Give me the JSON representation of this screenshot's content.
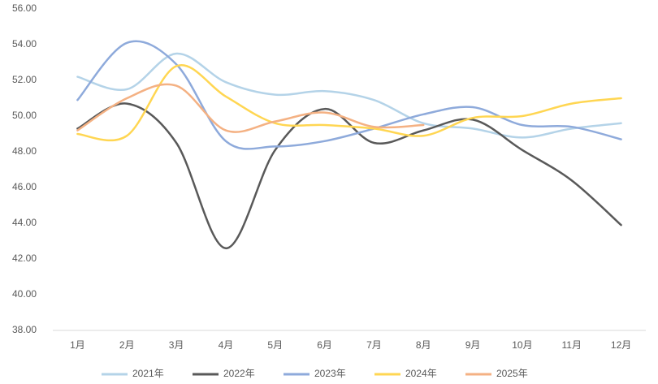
{
  "chart_data": {
    "type": "line",
    "categories": [
      "1月",
      "2月",
      "3月",
      "4月",
      "5月",
      "6月",
      "7月",
      "8月",
      "9月",
      "10月",
      "11月",
      "12月"
    ],
    "ylim": [
      38,
      56
    ],
    "yticks": [
      {
        "value": 38,
        "label": "38.00"
      },
      {
        "value": 40,
        "label": "40.00"
      },
      {
        "value": 42,
        "label": "42.00"
      },
      {
        "value": 44,
        "label": "44.00"
      },
      {
        "value": 46,
        "label": "46.00"
      },
      {
        "value": 48,
        "label": "48.00"
      },
      {
        "value": 50,
        "label": "50.00"
      },
      {
        "value": 52,
        "label": "52.00"
      },
      {
        "value": 54,
        "label": "54.00"
      },
      {
        "value": 56,
        "label": "56.00"
      }
    ],
    "grid": false,
    "smooth": true,
    "legend": "bottom",
    "series": [
      {
        "name": "2021年",
        "color": "#b4d3e8",
        "values": [
          52.2,
          51.5,
          53.5,
          51.9,
          51.2,
          51.4,
          50.9,
          49.6,
          49.3,
          48.8,
          49.3,
          49.6
        ]
      },
      {
        "name": "2022年",
        "color": "#595959",
        "values": [
          49.3,
          50.7,
          48.5,
          42.6,
          48.1,
          50.4,
          48.5,
          49.2,
          49.8,
          48.1,
          46.4,
          43.9
        ]
      },
      {
        "name": "2023年",
        "color": "#8eaadb",
        "values": [
          50.9,
          54.1,
          52.9,
          48.6,
          48.3,
          48.6,
          49.3,
          50.1,
          50.5,
          49.5,
          49.4,
          48.7
        ]
      },
      {
        "name": "2024年",
        "color": "#ffd652",
        "values": [
          49.0,
          48.9,
          52.8,
          51.1,
          49.6,
          49.5,
          49.3,
          48.9,
          49.9,
          50.0,
          50.7,
          51.0
        ]
      },
      {
        "name": "2025年",
        "color": "#f4b183",
        "values": [
          49.2,
          51.0,
          51.7,
          49.2,
          49.7,
          50.2,
          49.4,
          49.5,
          null,
          null,
          null,
          null
        ]
      }
    ]
  }
}
